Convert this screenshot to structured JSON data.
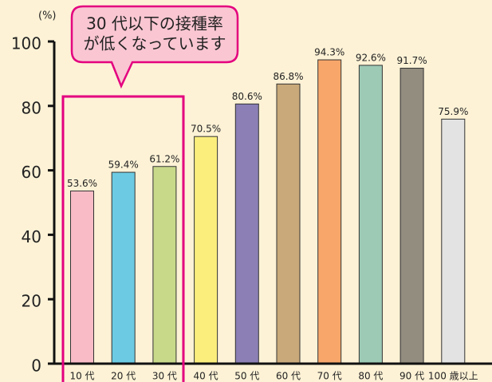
{
  "chart_data": {
    "type": "bar",
    "y_unit": "(%)",
    "annotation": [
      "30 代以下の接種率",
      "が低くなっています"
    ],
    "categories": [
      "10 代",
      "20 代",
      "30 代",
      "40 代",
      "50 代",
      "60 代",
      "70 代",
      "80 代",
      "90 代",
      "100 歳以上"
    ],
    "values": [
      53.6,
      59.4,
      61.2,
      70.5,
      80.6,
      86.8,
      94.3,
      92.6,
      91.7,
      75.9
    ],
    "value_labels": [
      "53.6%",
      "59.4%",
      "61.2%",
      "70.5%",
      "80.6%",
      "86.8%",
      "94.3%",
      "92.6%",
      "91.7%",
      "75.9%"
    ],
    "colors": [
      "#f9bcc6",
      "#6ccbe3",
      "#c8d98a",
      "#fbee7c",
      "#8b7fb5",
      "#c9a97a",
      "#f8a66a",
      "#9ccab5",
      "#938d80",
      "#e3e3e3"
    ],
    "ylim": [
      0,
      100
    ],
    "yticks": [
      0,
      20,
      40,
      60,
      80,
      100
    ],
    "grid": false
  }
}
